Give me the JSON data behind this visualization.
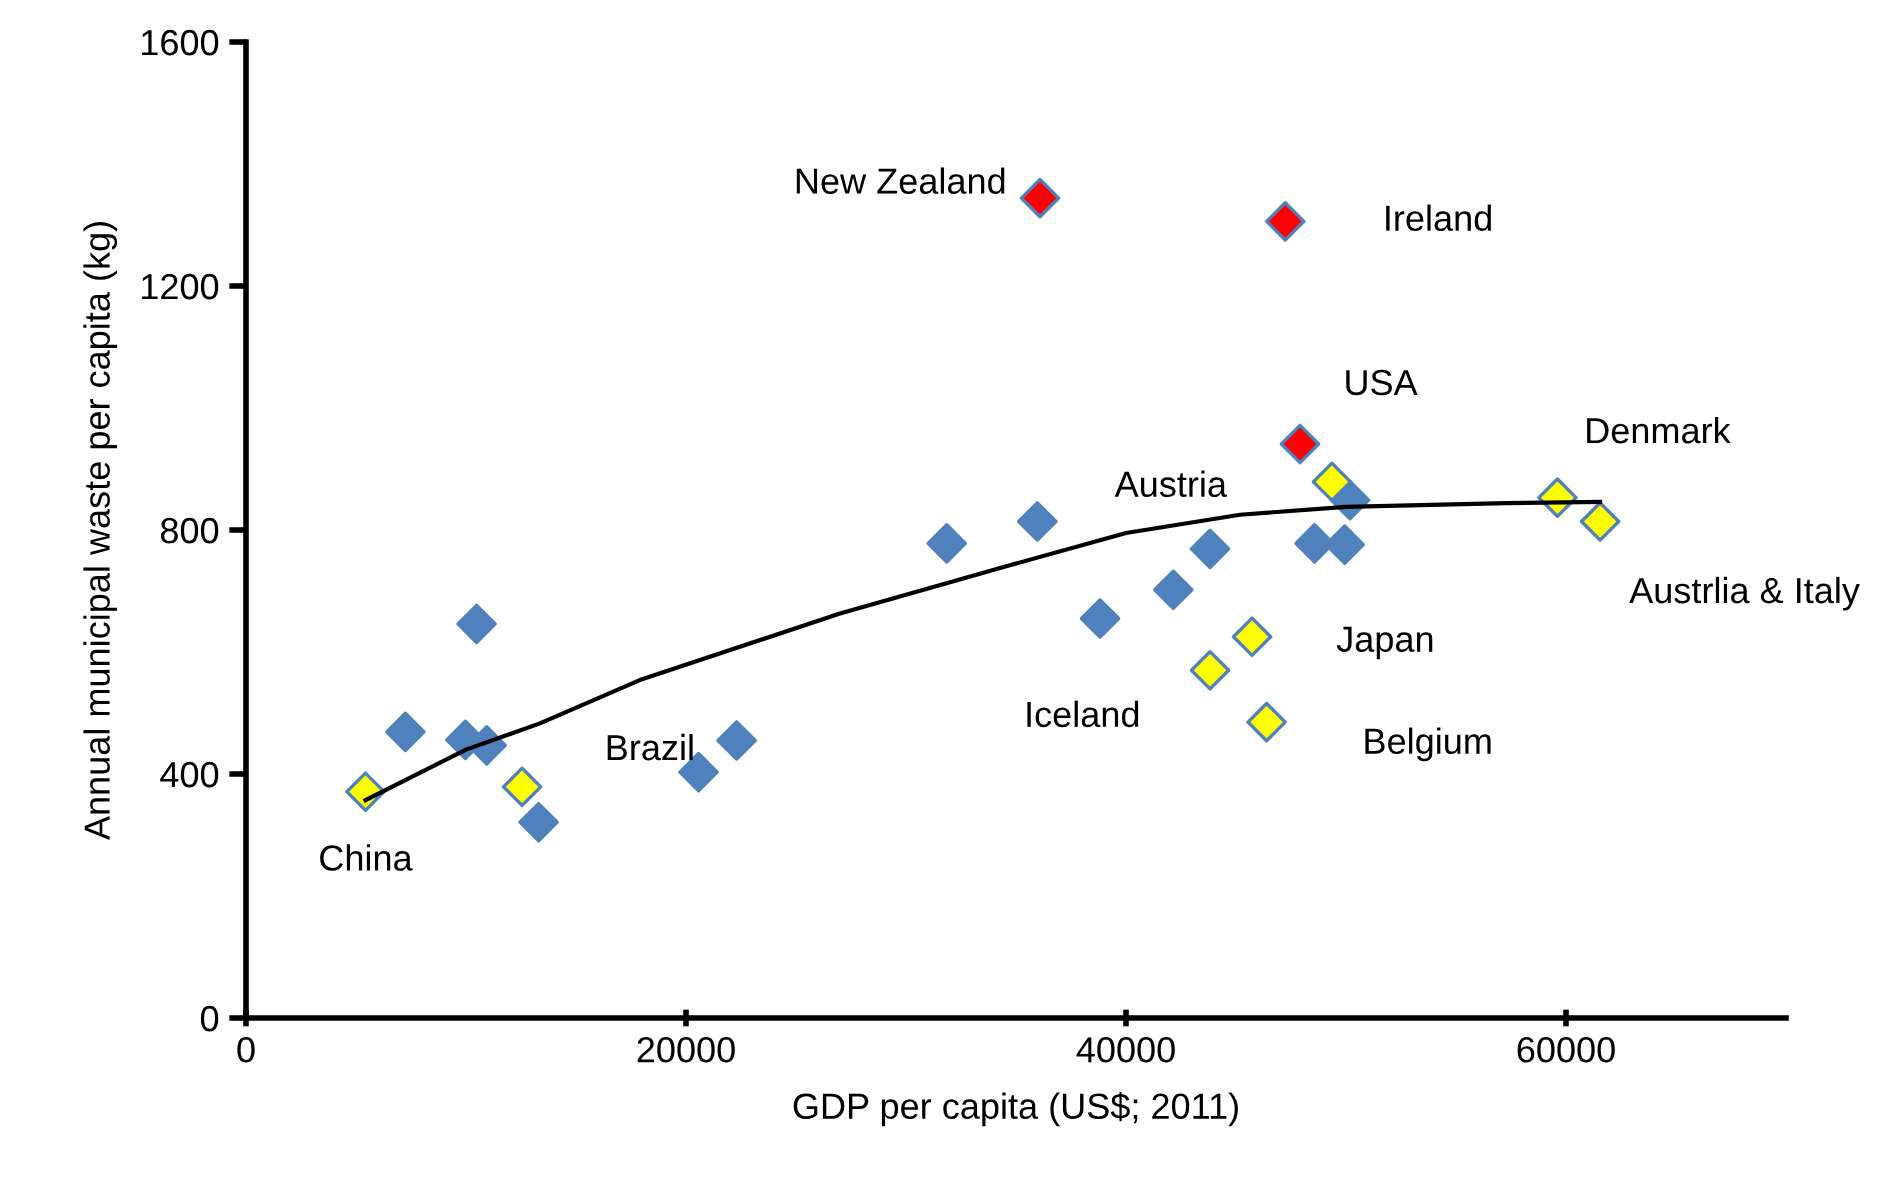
{
  "chart_data": {
    "type": "scatter",
    "xlabel": "GDP per capita (US$; 2011)",
    "ylabel": "Annual municipal waste per capita (kg)",
    "xlim": [
      0,
      70000
    ],
    "xticks": [
      0,
      20000,
      40000,
      60000
    ],
    "ylim": [
      0,
      1600
    ],
    "yticks": [
      0,
      400,
      800,
      1200,
      1600
    ],
    "grid": false,
    "legend": false,
    "marker": "diamond",
    "series": [
      {
        "type": "scatter",
        "color": "#4f81bd",
        "x": [
          7245,
          10480,
          9970,
          10940,
          13300,
          20570,
          22300,
          31850,
          35970,
          43820,
          48570,
          49940,
          42150,
          38820,
          50180
        ],
        "values": [
          469,
          646,
          456,
          447,
          321,
          403,
          455,
          778,
          814,
          769,
          778,
          776,
          702,
          655,
          849
        ]
      },
      {
        "type": "scatter",
        "color": "#ffff00",
        "x": [
          5430,
          12550,
          49360,
          59610,
          61550,
          45730,
          43820,
          46390
        ],
        "values": [
          371,
          379,
          879,
          853,
          814,
          625,
          570,
          485
        ]
      },
      {
        "type": "scatter",
        "color": "#ff0000",
        "x": [
          36090,
          47240,
          47910
        ],
        "values": [
          1344,
          1306,
          941
        ]
      },
      {
        "type": "line",
        "color": "#000000",
        "marker": "none",
        "line_style": "solid",
        "x": [
          5430,
          10000,
          13360,
          17900,
          27000,
          35000,
          40000,
          45180,
          50000,
          57270,
          61550
        ],
        "values": [
          357,
          440,
          483,
          554,
          663,
          745,
          795,
          825,
          838,
          844,
          846
        ]
      }
    ],
    "annotations": [
      {
        "text": "New Zealand",
        "x": 36090,
        "y": 1344
      },
      {
        "text": "Ireland",
        "x": 47240,
        "y": 1306
      },
      {
        "text": "USA",
        "x": 47910,
        "y": 941
      },
      {
        "text": "Austria",
        "x": 49360,
        "y": 879
      },
      {
        "text": "Denmark",
        "x": 59610,
        "y": 853
      },
      {
        "text": "Austrlia & Italy",
        "x": 61550,
        "y": 814
      },
      {
        "text": "Japan",
        "x": 45730,
        "y": 625
      },
      {
        "text": "Iceland",
        "x": 43820,
        "y": 570
      },
      {
        "text": "Belgium",
        "x": 46390,
        "y": 485
      },
      {
        "text": "Brazil",
        "x": 12550,
        "y": 379
      },
      {
        "text": "China",
        "x": 5430,
        "y": 371
      }
    ]
  }
}
